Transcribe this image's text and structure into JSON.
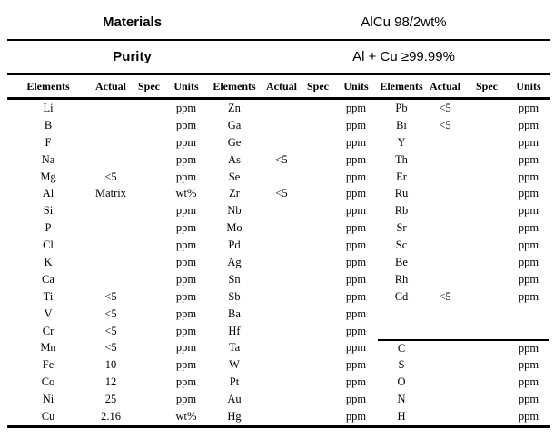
{
  "header": {
    "materials": {
      "label": "Materials",
      "value": "AlCu 98/2wt%"
    },
    "purity": {
      "label": "Purity",
      "value": "Al + Cu ≥99.99%"
    }
  },
  "table": {
    "column_headers": [
      "Elements",
      "Actual",
      "Spec",
      "Units",
      "Elements",
      "Actual",
      "Spec",
      "Units",
      "Elements",
      "Actual",
      "Spec",
      "Units"
    ],
    "rows": [
      [
        "Li",
        "",
        "",
        "ppm",
        "Zn",
        "",
        "",
        "ppm",
        "Pb",
        "<5",
        "",
        "ppm"
      ],
      [
        "B",
        "",
        "",
        "ppm",
        "Ga",
        "",
        "",
        "ppm",
        "Bi",
        "<5",
        "",
        "ppm"
      ],
      [
        "F",
        "",
        "",
        "ppm",
        "Ge",
        "",
        "",
        "ppm",
        "Y",
        "",
        "",
        "ppm"
      ],
      [
        "Na",
        "",
        "",
        "ppm",
        "As",
        "<5",
        "",
        "ppm",
        "Th",
        "",
        "",
        "ppm"
      ],
      [
        "Mg",
        "<5",
        "",
        "ppm",
        "Se",
        "",
        "",
        "ppm",
        "Er",
        "",
        "",
        "ppm"
      ],
      [
        "Al",
        "Matrix",
        "",
        "wt%",
        "Zr",
        "<5",
        "",
        "ppm",
        "Ru",
        "",
        "",
        "ppm"
      ],
      [
        "Si",
        "",
        "",
        "ppm",
        "Nb",
        "",
        "",
        "ppm",
        "Rb",
        "",
        "",
        "ppm"
      ],
      [
        "P",
        "",
        "",
        "ppm",
        "Mo",
        "",
        "",
        "ppm",
        "Sr",
        "",
        "",
        "ppm"
      ],
      [
        "Cl",
        "",
        "",
        "ppm",
        "Pd",
        "",
        "",
        "ppm",
        "Sc",
        "",
        "",
        "ppm"
      ],
      [
        "K",
        "",
        "",
        "ppm",
        "Ag",
        "",
        "",
        "ppm",
        "Be",
        "",
        "",
        "ppm"
      ],
      [
        "Ca",
        "",
        "",
        "ppm",
        "Sn",
        "",
        "",
        "ppm",
        "Rh",
        "",
        "",
        "ppm"
      ],
      [
        "Ti",
        "<5",
        "",
        "ppm",
        "Sb",
        "",
        "",
        "ppm",
        "Cd",
        "<5",
        "",
        "ppm"
      ],
      [
        "V",
        "<5",
        "",
        "ppm",
        "Ba",
        "",
        "",
        "ppm",
        "",
        "",
        "",
        ""
      ],
      [
        "Cr",
        "<5",
        "",
        "ppm",
        "Hf",
        "",
        "",
        "ppm",
        "",
        "",
        "",
        ""
      ],
      [
        "Mn",
        "<5",
        "",
        "ppm",
        "Ta",
        "",
        "",
        "ppm",
        "C",
        "",
        "",
        "ppm"
      ],
      [
        "Fe",
        "10",
        "",
        "ppm",
        "W",
        "",
        "",
        "ppm",
        "S",
        "",
        "",
        "ppm"
      ],
      [
        "Co",
        "12",
        "",
        "ppm",
        "Pt",
        "",
        "",
        "ppm",
        "O",
        "",
        "",
        "ppm"
      ],
      [
        "Ni",
        "25",
        "",
        "ppm",
        "Au",
        "",
        "",
        "ppm",
        "N",
        "",
        "",
        "ppm"
      ],
      [
        "Cu",
        "2.16",
        "",
        "wt%",
        "Hg",
        "",
        "",
        "ppm",
        "H",
        "",
        "",
        "ppm"
      ]
    ],
    "divider_before_row": 15,
    "divider_columns_from": 9
  },
  "colors": {
    "background": "#ffffff",
    "text": "#000000",
    "rule": "#000000"
  }
}
